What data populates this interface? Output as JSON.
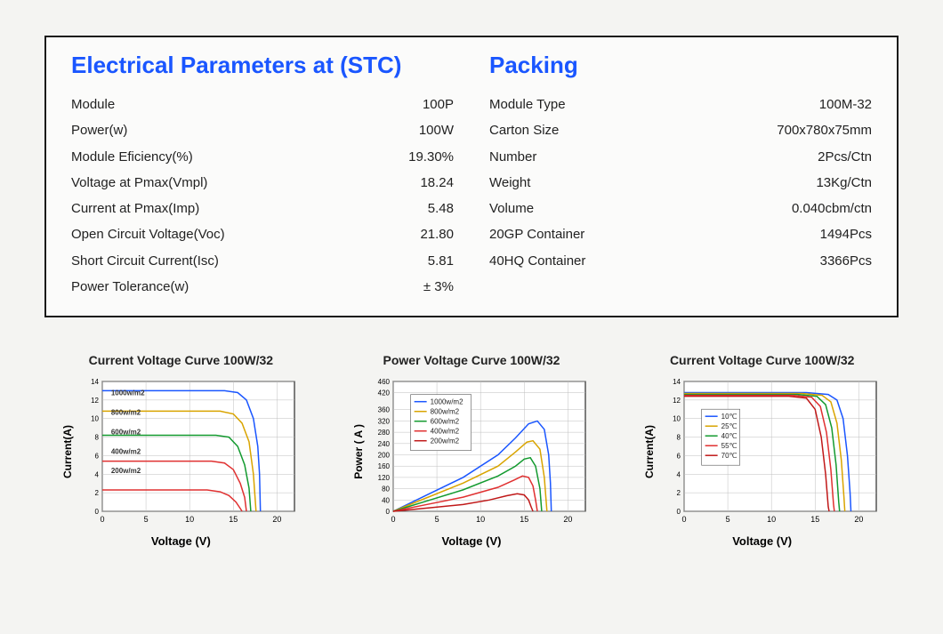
{
  "panel": {
    "left_title": "Electrical Parameters at (STC)",
    "right_title": "Packing",
    "electrical": [
      {
        "label": "Module",
        "value": "100P"
      },
      {
        "label": "Power(w)",
        "value": "100W"
      },
      {
        "label": "Module Eficiency(%)",
        "value": "19.30%"
      },
      {
        "label": "Voltage at Pmax(Vmpl)",
        "value": "18.24"
      },
      {
        "label": "Current at Pmax(Imp)",
        "value": "5.48"
      },
      {
        "label": "Open Circuit Voltage(Voc)",
        "value": "21.80"
      },
      {
        "label": "Short Circuit Current(Isc)",
        "value": "5.81"
      },
      {
        "label": "Power Tolerance(w)",
        "value": "± 3%"
      }
    ],
    "packing": [
      {
        "label": "Module Type",
        "value": "100M-32"
      },
      {
        "label": "Carton Size",
        "value": "700x780x75mm"
      },
      {
        "label": "Number",
        "value": "2Pcs/Ctn"
      },
      {
        "label": "Weight",
        "value": "13Kg/Ctn"
      },
      {
        "label": "Volume",
        "value": "0.040cbm/ctn"
      },
      {
        "label": "20GP Container",
        "value": "1494Pcs"
      },
      {
        "label": "40HQ Container",
        "value": "3366Pcs"
      }
    ]
  },
  "charts": {
    "iv_irradiance": {
      "type": "line",
      "title": "Current Voltage Curve 100W/32",
      "xlabel": "Voltage (V)",
      "ylabel": "Current(A)",
      "xlim": [
        0,
        22
      ],
      "ylim": [
        0,
        14
      ],
      "xticks": [
        0,
        5,
        10,
        15,
        20
      ],
      "yticks": [
        0,
        2,
        4,
        6,
        8,
        10,
        12,
        14
      ],
      "grid_color": "#bfbfbf",
      "axis_color": "#000000",
      "bg": "#ffffff",
      "line_width": 1.5,
      "series": [
        {
          "name": "1000w/m2",
          "color": "#1a56ff",
          "points": [
            [
              0,
              13.0
            ],
            [
              5,
              13.0
            ],
            [
              10,
              13.0
            ],
            [
              14,
              13.0
            ],
            [
              15.5,
              12.8
            ],
            [
              16.5,
              12.0
            ],
            [
              17.3,
              10.0
            ],
            [
              17.8,
              7.0
            ],
            [
              18.0,
              4.0
            ],
            [
              18.1,
              0
            ]
          ]
        },
        {
          "name": "800w/m2",
          "color": "#d9a400",
          "points": [
            [
              0,
              10.8
            ],
            [
              5,
              10.8
            ],
            [
              10,
              10.8
            ],
            [
              13.5,
              10.8
            ],
            [
              15.0,
              10.5
            ],
            [
              16.0,
              9.5
            ],
            [
              16.8,
              7.5
            ],
            [
              17.3,
              4.0
            ],
            [
              17.6,
              0
            ]
          ]
        },
        {
          "name": "600w/m2",
          "color": "#139a2f",
          "points": [
            [
              0,
              8.2
            ],
            [
              5,
              8.2
            ],
            [
              10,
              8.2
            ],
            [
              13,
              8.2
            ],
            [
              14.5,
              8.0
            ],
            [
              15.5,
              7.0
            ],
            [
              16.3,
              5.0
            ],
            [
              16.8,
              2.5
            ],
            [
              17.0,
              0
            ]
          ]
        },
        {
          "name": "400w/m2",
          "color": "#e03030",
          "points": [
            [
              0,
              5.4
            ],
            [
              5,
              5.4
            ],
            [
              10,
              5.4
            ],
            [
              12.5,
              5.4
            ],
            [
              14,
              5.2
            ],
            [
              15,
              4.5
            ],
            [
              15.8,
              3.0
            ],
            [
              16.3,
              1.5
            ],
            [
              16.5,
              0
            ]
          ]
        },
        {
          "name": "200w/m2",
          "color": "#e03030",
          "points": [
            [
              0,
              2.3
            ],
            [
              5,
              2.3
            ],
            [
              10,
              2.3
            ],
            [
              12,
              2.3
            ],
            [
              13.5,
              2.1
            ],
            [
              14.5,
              1.7
            ],
            [
              15.3,
              1.0
            ],
            [
              15.8,
              0.3
            ],
            [
              16.0,
              0
            ]
          ]
        }
      ],
      "legend": {
        "inside": true,
        "x": 1,
        "ystart": 12.5,
        "ystep": 2.1,
        "fontsize": 8
      }
    },
    "pv": {
      "type": "line",
      "title": "Power Voltage Curve  100W/32",
      "xlabel": "Voltage (V)",
      "ylabel": "Power ( A )",
      "xlim": [
        0,
        22
      ],
      "ylim": [
        0,
        460
      ],
      "xticks": [
        0,
        5,
        10,
        15,
        20
      ],
      "yticks": [
        0,
        40,
        80,
        120,
        160,
        200,
        240,
        280,
        320,
        360,
        420,
        460
      ],
      "grid_color": "#bfbfbf",
      "axis_color": "#000000",
      "bg": "#ffffff",
      "line_width": 1.5,
      "series": [
        {
          "name": "1000w/m2",
          "color": "#1a56ff",
          "points": [
            [
              0,
              0
            ],
            [
              4,
              60
            ],
            [
              8,
              120
            ],
            [
              12,
              200
            ],
            [
              14,
              260
            ],
            [
              15.5,
              310
            ],
            [
              16.5,
              320
            ],
            [
              17.3,
              290
            ],
            [
              17.8,
              200
            ],
            [
              18.0,
              100
            ],
            [
              18.1,
              0
            ]
          ]
        },
        {
          "name": "800w/m2",
          "color": "#d9a400",
          "points": [
            [
              0,
              0
            ],
            [
              4,
              50
            ],
            [
              8,
              100
            ],
            [
              12,
              160
            ],
            [
              14,
              210
            ],
            [
              15.3,
              245
            ],
            [
              16.0,
              250
            ],
            [
              16.8,
              220
            ],
            [
              17.3,
              120
            ],
            [
              17.6,
              0
            ]
          ]
        },
        {
          "name": "600w/m2",
          "color": "#139a2f",
          "points": [
            [
              0,
              0
            ],
            [
              4,
              38
            ],
            [
              8,
              76
            ],
            [
              12,
              125
            ],
            [
              14,
              160
            ],
            [
              15.0,
              185
            ],
            [
              15.7,
              190
            ],
            [
              16.3,
              160
            ],
            [
              16.8,
              80
            ],
            [
              17.0,
              0
            ]
          ]
        },
        {
          "name": "400w/m2",
          "color": "#e03030",
          "points": [
            [
              0,
              0
            ],
            [
              4,
              25
            ],
            [
              8,
              50
            ],
            [
              12,
              85
            ],
            [
              13.8,
              110
            ],
            [
              14.8,
              125
            ],
            [
              15.5,
              120
            ],
            [
              16.0,
              90
            ],
            [
              16.3,
              40
            ],
            [
              16.5,
              0
            ]
          ]
        },
        {
          "name": "200w/m2",
          "color": "#c01818",
          "points": [
            [
              0,
              0
            ],
            [
              4,
              12
            ],
            [
              8,
              24
            ],
            [
              11,
              40
            ],
            [
              13,
              55
            ],
            [
              14.2,
              62
            ],
            [
              15.0,
              58
            ],
            [
              15.5,
              40
            ],
            [
              15.8,
              15
            ],
            [
              16.0,
              0
            ]
          ]
        }
      ],
      "legend": {
        "box": true,
        "x": 2,
        "ystart": 420,
        "ystep": 35,
        "fontsize": 8
      }
    },
    "iv_temp": {
      "type": "line",
      "title": "Current Voltage Curve  100W/32",
      "xlabel": "Voltage (V)",
      "ylabel": "Current(A)",
      "xlim": [
        0,
        22
      ],
      "ylim": [
        0,
        14
      ],
      "xticks": [
        0,
        5,
        10,
        15,
        20
      ],
      "yticks": [
        0,
        2,
        4,
        6,
        8,
        10,
        12,
        14
      ],
      "grid_color": "#bfbfbf",
      "axis_color": "#000000",
      "bg": "#ffffff",
      "line_width": 1.5,
      "series": [
        {
          "name": "10℃",
          "color": "#1a56ff",
          "points": [
            [
              0,
              12.8
            ],
            [
              8,
              12.8
            ],
            [
              14,
              12.8
            ],
            [
              16.5,
              12.6
            ],
            [
              17.5,
              12.0
            ],
            [
              18.2,
              10.0
            ],
            [
              18.7,
              6.0
            ],
            [
              19.0,
              2.0
            ],
            [
              19.1,
              0
            ]
          ]
        },
        {
          "name": "25℃",
          "color": "#d9a400",
          "points": [
            [
              0,
              12.7
            ],
            [
              8,
              12.7
            ],
            [
              13.5,
              12.7
            ],
            [
              15.8,
              12.5
            ],
            [
              16.8,
              11.8
            ],
            [
              17.5,
              9.5
            ],
            [
              18.0,
              5.5
            ],
            [
              18.3,
              1.5
            ],
            [
              18.4,
              0
            ]
          ]
        },
        {
          "name": "40℃",
          "color": "#139a2f",
          "points": [
            [
              0,
              12.6
            ],
            [
              8,
              12.6
            ],
            [
              13,
              12.6
            ],
            [
              15.2,
              12.4
            ],
            [
              16.2,
              11.5
            ],
            [
              16.9,
              9.0
            ],
            [
              17.4,
              5.0
            ],
            [
              17.7,
              1.0
            ],
            [
              17.8,
              0
            ]
          ]
        },
        {
          "name": "55℃",
          "color": "#e03030",
          "points": [
            [
              0,
              12.5
            ],
            [
              8,
              12.5
            ],
            [
              12.5,
              12.5
            ],
            [
              14.6,
              12.3
            ],
            [
              15.6,
              11.3
            ],
            [
              16.3,
              8.5
            ],
            [
              16.8,
              4.5
            ],
            [
              17.1,
              0.8
            ],
            [
              17.2,
              0
            ]
          ]
        },
        {
          "name": "70℃",
          "color": "#c01818",
          "points": [
            [
              0,
              12.4
            ],
            [
              8,
              12.4
            ],
            [
              12,
              12.4
            ],
            [
              14.0,
              12.2
            ],
            [
              15.0,
              11.0
            ],
            [
              15.7,
              8.0
            ],
            [
              16.2,
              4.0
            ],
            [
              16.5,
              0.5
            ],
            [
              16.6,
              0
            ]
          ]
        }
      ],
      "legend": {
        "box": true,
        "x": 2,
        "ystart": 11.2,
        "ystep": 1.0,
        "fontsize": 8
      }
    }
  }
}
